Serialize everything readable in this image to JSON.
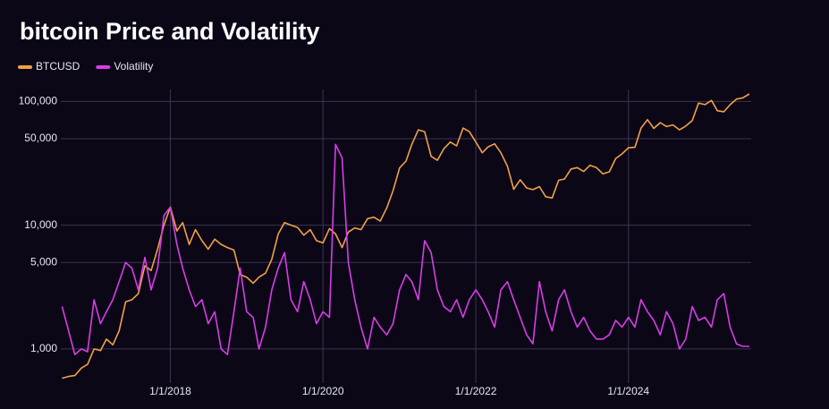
{
  "chart_data": {
    "type": "line",
    "title": "bitcoin Price and Volatility",
    "log_scale": true,
    "grid": true,
    "legend": "top-left",
    "x": [
      "2016-08-01",
      "2016-09-01",
      "2016-10-01",
      "2016-11-01",
      "2016-12-01",
      "2017-01-01",
      "2017-02-01",
      "2017-03-01",
      "2017-04-01",
      "2017-05-01",
      "2017-06-01",
      "2017-07-01",
      "2017-08-01",
      "2017-09-01",
      "2017-10-01",
      "2017-11-01",
      "2017-12-01",
      "2018-01-01",
      "2018-02-01",
      "2018-03-01",
      "2018-04-01",
      "2018-05-01",
      "2018-06-01",
      "2018-07-01",
      "2018-08-01",
      "2018-09-01",
      "2018-10-01",
      "2018-11-01",
      "2018-12-01",
      "2019-01-01",
      "2019-02-01",
      "2019-03-01",
      "2019-04-01",
      "2019-05-01",
      "2019-06-01",
      "2019-07-01",
      "2019-08-01",
      "2019-09-01",
      "2019-10-01",
      "2019-11-01",
      "2019-12-01",
      "2020-01-01",
      "2020-02-01",
      "2020-03-01",
      "2020-04-01",
      "2020-05-01",
      "2020-06-01",
      "2020-07-01",
      "2020-08-01",
      "2020-09-01",
      "2020-10-01",
      "2020-11-01",
      "2020-12-01",
      "2021-01-01",
      "2021-02-01",
      "2021-03-01",
      "2021-04-01",
      "2021-05-01",
      "2021-06-01",
      "2021-07-01",
      "2021-08-01",
      "2021-09-01",
      "2021-10-01",
      "2021-11-01",
      "2021-12-01",
      "2022-01-01",
      "2022-02-01",
      "2022-03-01",
      "2022-04-01",
      "2022-05-01",
      "2022-06-01",
      "2022-07-01",
      "2022-08-01",
      "2022-09-01",
      "2022-10-01",
      "2022-11-01",
      "2022-12-01",
      "2023-01-01",
      "2023-02-01",
      "2023-03-01",
      "2023-04-01",
      "2023-05-01",
      "2023-06-01",
      "2023-07-01",
      "2023-08-01",
      "2023-09-01",
      "2023-10-01",
      "2023-11-01",
      "2023-12-01",
      "2024-01-01",
      "2024-02-01",
      "2024-03-01",
      "2024-04-01",
      "2024-05-01",
      "2024-06-01",
      "2024-07-01",
      "2024-08-01",
      "2024-09-01",
      "2024-10-01",
      "2024-11-01",
      "2024-12-01",
      "2025-01-01",
      "2025-02-01",
      "2025-03-01",
      "2025-04-01",
      "2025-05-01",
      "2025-06-01",
      "2025-07-01",
      "2025-08-01"
    ],
    "series": [
      {
        "name": "BTCUSD",
        "color": "#f2a046",
        "values": [
          580,
          600,
          610,
          700,
          750,
          1000,
          970,
          1200,
          1080,
          1400,
          2400,
          2500,
          2800,
          4700,
          4300,
          6400,
          10000,
          14000,
          9000,
          10500,
          7000,
          9200,
          7500,
          6400,
          7700,
          7000,
          6600,
          6300,
          4000,
          3800,
          3400,
          3800,
          4100,
          5300,
          8500,
          10500,
          10000,
          9600,
          8300,
          9200,
          7500,
          7200,
          9400,
          8500,
          6600,
          8800,
          9500,
          9200,
          11300,
          11600,
          10800,
          13800,
          19000,
          29000,
          33000,
          45000,
          59000,
          57000,
          36000,
          33500,
          41500,
          47000,
          43800,
          61000,
          57000,
          47000,
          38500,
          43000,
          45500,
          38500,
          30000,
          19500,
          23300,
          20000,
          19400,
          20500,
          17000,
          16600,
          23100,
          23600,
          28500,
          29200,
          27200,
          30500,
          29200,
          26000,
          27000,
          34600,
          37700,
          42300,
          42600,
          61000,
          71300,
          60600,
          67500,
          62700,
          64600,
          59000,
          63300,
          70200,
          97000,
          94400,
          102000,
          84300,
          82500,
          94200,
          104600,
          107000,
          115000
        ]
      },
      {
        "name": "Volatility",
        "color": "#d83ee6",
        "values": [
          2200,
          1400,
          900,
          1000,
          950,
          2500,
          1600,
          2000,
          2500,
          3500,
          5000,
          4500,
          3000,
          5500,
          3000,
          4500,
          12000,
          14000,
          7000,
          4500,
          3000,
          2200,
          2500,
          1600,
          2000,
          1000,
          900,
          2000,
          4500,
          2000,
          1800,
          1000,
          1500,
          3000,
          4500,
          6000,
          2500,
          2000,
          3500,
          2500,
          1600,
          2000,
          1800,
          45000,
          35000,
          5000,
          2500,
          1500,
          1000,
          1800,
          1500,
          1300,
          1600,
          3000,
          4000,
          3500,
          2500,
          7500,
          6000,
          3000,
          2200,
          2000,
          2500,
          1800,
          2500,
          3000,
          2500,
          2000,
          1500,
          3000,
          3500,
          2500,
          1800,
          1300,
          1100,
          3500,
          2000,
          1400,
          2500,
          3000,
          2000,
          1500,
          1800,
          1400,
          1200,
          1200,
          1300,
          1700,
          1500,
          1800,
          1500,
          2500,
          2000,
          1700,
          1300,
          2000,
          1600,
          1000,
          1200,
          2200,
          1700,
          1800,
          1500,
          2500,
          2800,
          1500,
          1100,
          1050,
          1050
        ]
      }
    ],
    "xlim": [
      "2016-07-26",
      "2025-08-10"
    ],
    "xticks": [
      {
        "value": "2018-01-01",
        "label": "1/1/2018"
      },
      {
        "value": "2020-01-01",
        "label": "1/1/2020"
      },
      {
        "value": "2022-01-01",
        "label": "1/1/2022"
      },
      {
        "value": "2024-01-01",
        "label": "1/1/2024"
      }
    ],
    "ylim": [
      530,
      125000
    ],
    "yticks": [
      {
        "value": 1000,
        "label": "1,000"
      },
      {
        "value": 5000,
        "label": "5,000"
      },
      {
        "value": 10000,
        "label": "10,000"
      },
      {
        "value": 50000,
        "label": "50,000"
      },
      {
        "value": 100000,
        "label": "100,000"
      }
    ]
  }
}
